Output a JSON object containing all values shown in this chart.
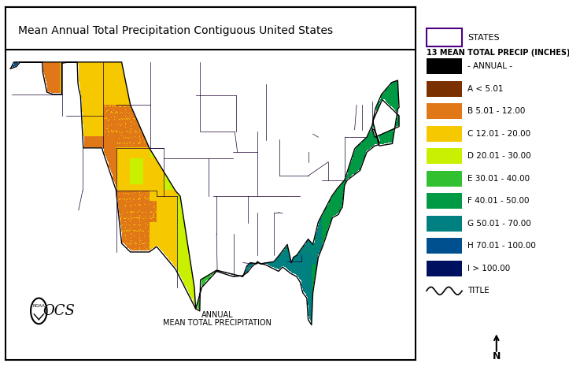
{
  "title": "Mean Annual Total Precipitation Contiguous United States",
  "subtitle_line1": "ANNUAL",
  "subtitle_line2": "MEAN TOTAL PRECIPITATION",
  "legend_header1": "STATES",
  "legend_header2": "13 MEAN TOTAL PRECIP (INCHES)",
  "legend_entries": [
    {
      "label": "- ANNUAL -",
      "color": "#000000"
    },
    {
      "label": "A < 5.01",
      "color": "#7B3000"
    },
    {
      "label": "B 5.01 - 12.00",
      "color": "#E07818"
    },
    {
      "label": "C 12.01 - 20.00",
      "color": "#F5C800"
    },
    {
      "label": "D 20.01 - 30.00",
      "color": "#C8F000"
    },
    {
      "label": "E 30.01 - 40.00",
      "color": "#30C030"
    },
    {
      "label": "F 40.01 - 50.00",
      "color": "#009944"
    },
    {
      "label": "G 50.01 - 70.00",
      "color": "#008080"
    },
    {
      "label": "H 70.01 - 100.00",
      "color": "#005090"
    },
    {
      "label": "I > 100.00",
      "color": "#001060"
    }
  ],
  "legend_states_color": "#4B0082",
  "bg_color": "#FFFFFF",
  "outer_box_color": "#000000",
  "noaa_text": "NOAA",
  "ocs_text": "OCS",
  "bounds": [
    0,
    5.01,
    12,
    20,
    30,
    40,
    50,
    70,
    100,
    300
  ],
  "cmap_colors": [
    "#7B3000",
    "#E07818",
    "#F5C800",
    "#C8F000",
    "#30C030",
    "#009944",
    "#008080",
    "#005090",
    "#001060"
  ]
}
